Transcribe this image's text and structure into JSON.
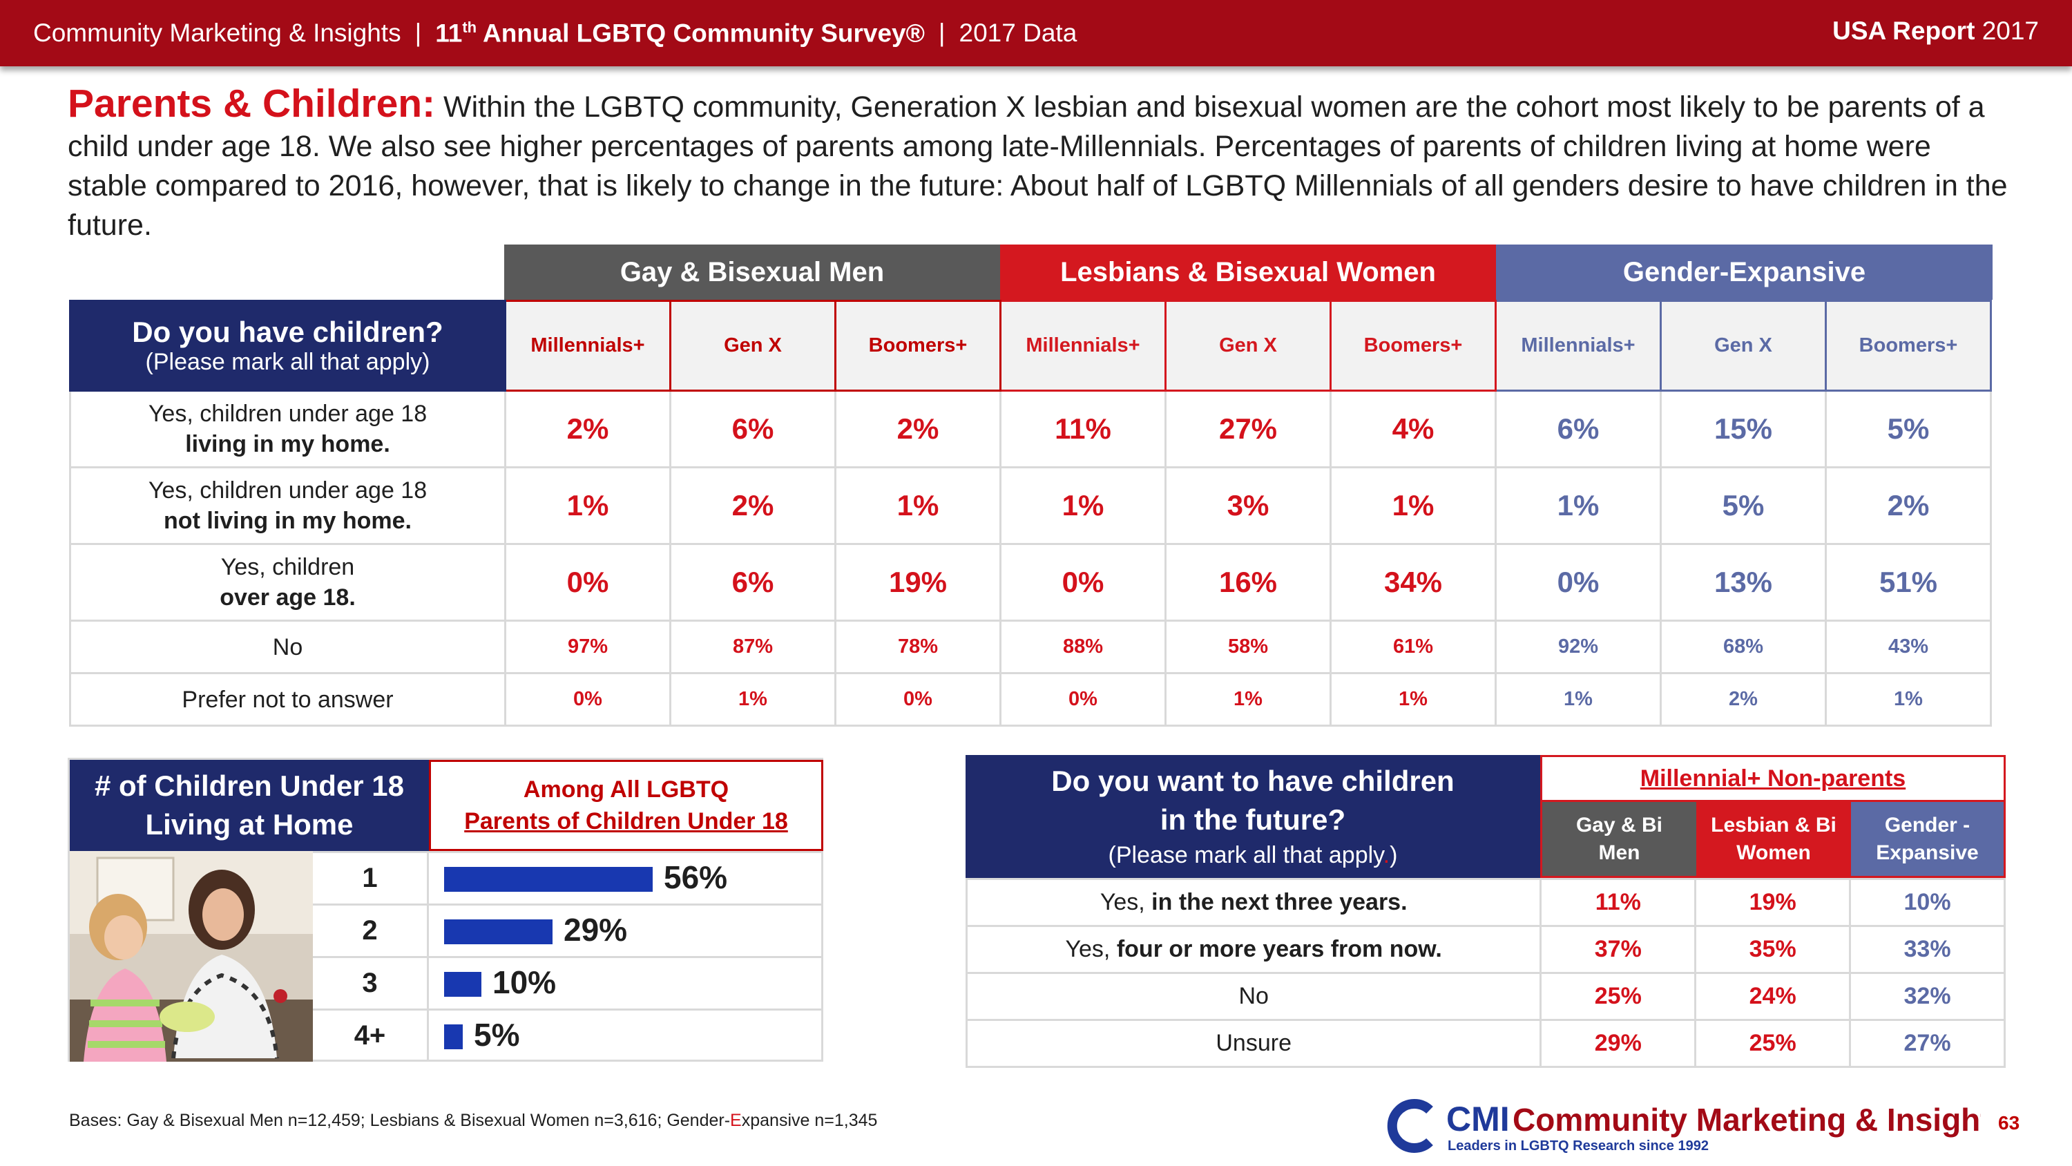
{
  "header": {
    "org": "Community Marketing & Insights",
    "survey_prefix": "11",
    "survey_sup": "th",
    "survey_rest": " Annual LGBTQ Community Survey®",
    "data_year": "2017 Data",
    "sep": "|",
    "report_bold": "USA Report",
    "report_year": "2017"
  },
  "intro": {
    "keyword": "Parents & Children:",
    "text": " Within the LGBTQ community, Generation X lesbian and bisexual women are the cohort most likely to be parents of a child under age 18. We also see higher percentages of parents among late-Millennials. Percentages of parents of children living at home were stable compared to 2016, however, that is likely to change in the future: About half of LGBTQ Millennials of all genders desire to have children in the future."
  },
  "main_table": {
    "question": "Do you have children?",
    "question_note": "(Please mark all that apply)",
    "groups": [
      "Gay & Bisexual Men",
      "Lesbians & Bisexual Women",
      "Gender-Expansive"
    ],
    "subheaders": [
      "Millennials+",
      "Gen X",
      "Boomers+",
      "Millennials+",
      "Gen X",
      "Boomers+",
      "Millennials+",
      "Gen X",
      "Boomers+"
    ],
    "rows": [
      {
        "label1": "Yes, children under age 18",
        "label2": "living in my home.",
        "values": [
          "2%",
          "6%",
          "2%",
          "11%",
          "27%",
          "4%",
          "6%",
          "15%",
          "5%"
        ]
      },
      {
        "label1": "Yes, children under age 18",
        "label2": "not living in my home.",
        "values": [
          "1%",
          "2%",
          "1%",
          "1%",
          "3%",
          "1%",
          "1%",
          "5%",
          "2%"
        ]
      },
      {
        "label1": "Yes, children",
        "label2": "over age 18.",
        "values": [
          "0%",
          "6%",
          "19%",
          "0%",
          "16%",
          "34%",
          "0%",
          "13%",
          "51%"
        ]
      },
      {
        "label1": "No",
        "label2": "",
        "values": [
          "97%",
          "87%",
          "78%",
          "88%",
          "58%",
          "61%",
          "92%",
          "68%",
          "43%"
        ]
      },
      {
        "label1": "Prefer not to answer",
        "label2": "",
        "values": [
          "0%",
          "1%",
          "0%",
          "0%",
          "1%",
          "1%",
          "1%",
          "2%",
          "1%"
        ]
      }
    ]
  },
  "children_panel": {
    "title1": "# of Children Under 18",
    "title2": "Living at Home",
    "sub1": "Among All LGBTQ",
    "sub2": "Parents of Children Under 18",
    "photo_icon": "parent-child-photo",
    "rows": [
      {
        "n": "1",
        "pct": "56%",
        "value": 56
      },
      {
        "n": "2",
        "pct": "29%",
        "value": 29
      },
      {
        "n": "3",
        "pct": "10%",
        "value": 10
      },
      {
        "n": "4+",
        "pct": "5%",
        "value": 5
      }
    ]
  },
  "future_table": {
    "q1": "Do you want to have children",
    "q2": "in the future?",
    "note": "(Please mark all that apply",
    "note_dot": ".",
    "note_close": ")",
    "group": "Millennial+ Non-parents",
    "cols": [
      {
        "l1": "Gay & Bi",
        "l2": "Men"
      },
      {
        "l1": "Lesbian & Bi",
        "l2": "Women"
      },
      {
        "l1": "Gender -",
        "l2": "Expansive"
      }
    ],
    "rows": [
      {
        "pre": "Yes, ",
        "bold": "in the next three years.",
        "values": [
          "11%",
          "19%",
          "10%"
        ]
      },
      {
        "pre": "Yes, ",
        "bold": "four or more years from now.",
        "values": [
          "37%",
          "35%",
          "33%"
        ]
      },
      {
        "pre": "No",
        "bold": "",
        "values": [
          "25%",
          "24%",
          "32%"
        ]
      },
      {
        "pre": "Unsure",
        "bold": "",
        "values": [
          "29%",
          "25%",
          "27%"
        ]
      }
    ]
  },
  "footer": {
    "bases_a": "Bases: Gay & Bisexual Men n=12,459; Lesbians & Bisexual Women n=3,616; Gender-",
    "bases_e": "E",
    "bases_b": "xpansive n=1,345",
    "logo_cmi": "CMI",
    "logo_name": "Community Marketing & Insights",
    "logo_tag": "Leaders in LGBTQ Research since 1992",
    "page": "63"
  },
  "colors": {
    "header_red": "#a30a16",
    "navy": "#1f2a6b",
    "gay_grey": "#595959",
    "les_red": "#d4181f",
    "gen_blue": "#5b6aa5",
    "bar_blue": "#1838b0"
  }
}
